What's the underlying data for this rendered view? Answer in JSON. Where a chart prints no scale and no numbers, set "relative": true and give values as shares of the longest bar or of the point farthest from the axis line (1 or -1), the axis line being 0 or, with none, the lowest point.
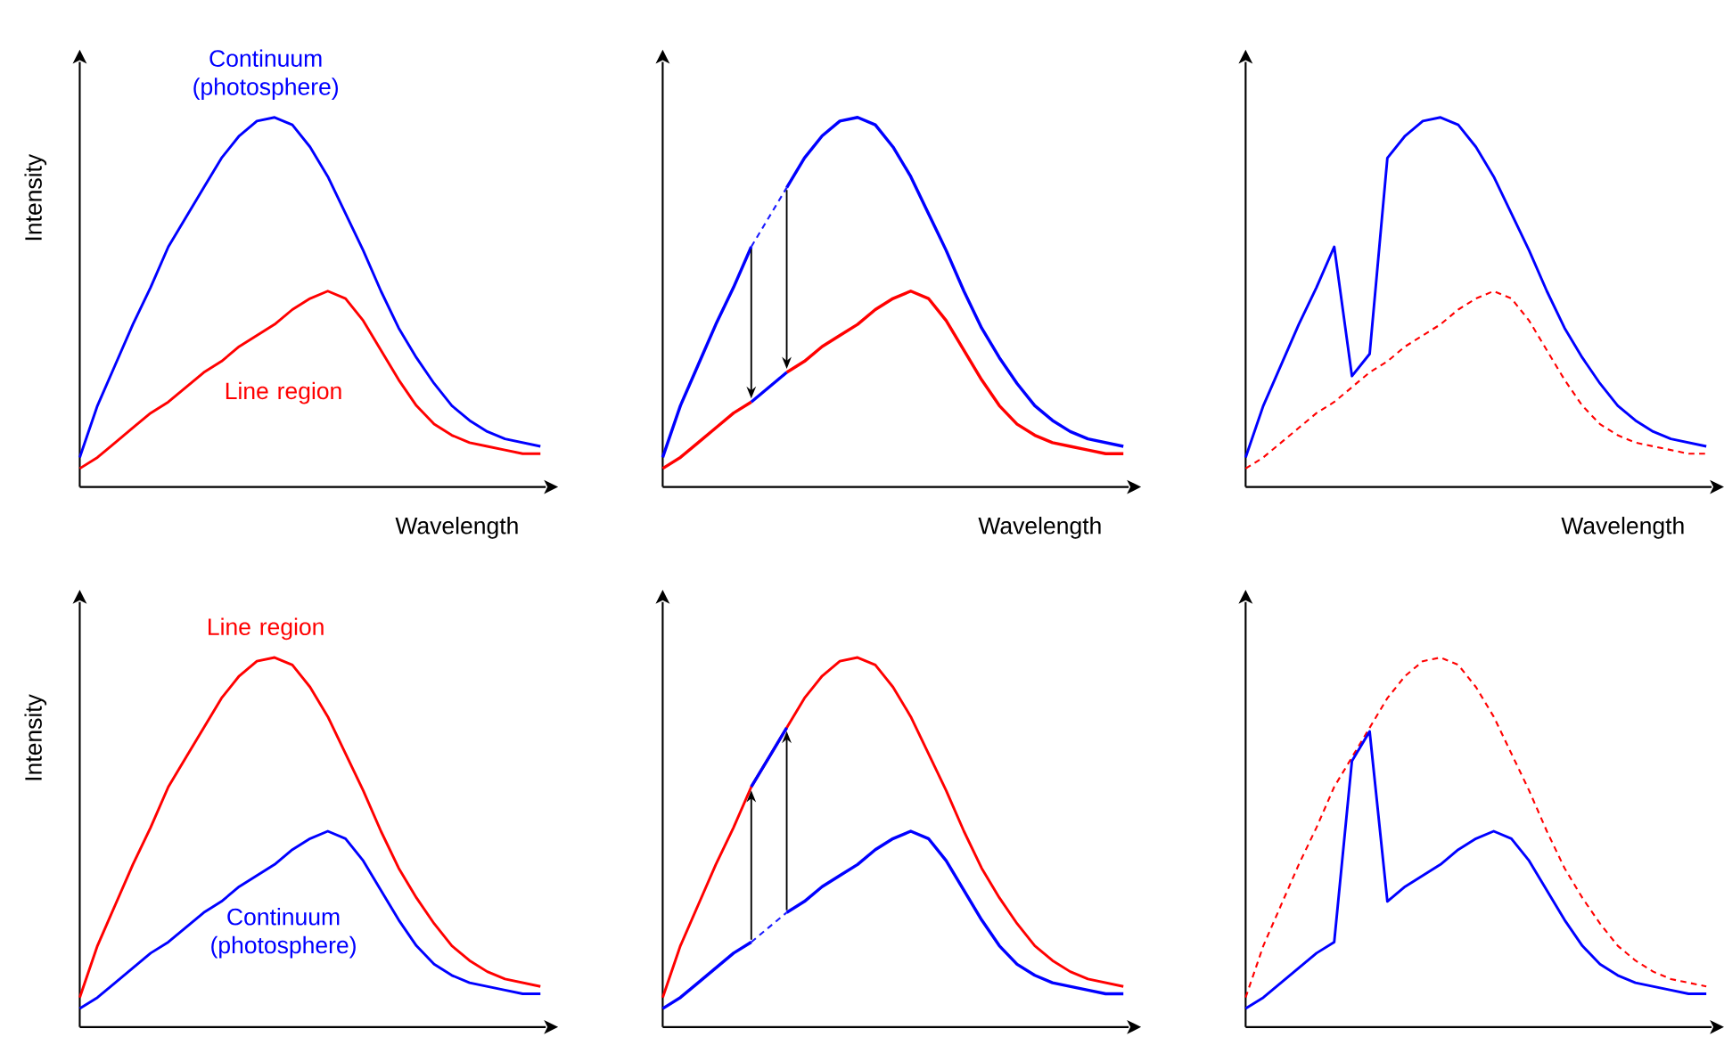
{
  "chart_data": [
    {
      "type": "line",
      "relative": true,
      "ylabel": "Intensity",
      "xlabel": "Wavelength",
      "categories": [
        null,
        null,
        null,
        null,
        null,
        null,
        null,
        null,
        null,
        null,
        null,
        null,
        null,
        null,
        null,
        null,
        null,
        null,
        null,
        null,
        null,
        null,
        null,
        null,
        null,
        null,
        null
      ],
      "series": [
        {
          "name": "Continuum (photosphere)",
          "color": "#0000ff",
          "values": [
            0.08,
            0.22,
            0.33,
            0.44,
            0.54,
            0.65,
            0.73,
            0.81,
            0.89,
            0.95,
            0.99,
            1,
            0.98,
            0.92,
            0.84,
            0.74,
            0.64,
            0.53,
            0.43,
            0.35,
            0.28,
            0.22,
            0.18,
            0.15,
            0.13,
            0.12,
            0.11
          ]
        },
        {
          "name": "Line region",
          "color": "#ff0000",
          "values": [
            0.05,
            0.08,
            0.12,
            0.16,
            0.2,
            0.23,
            0.27,
            0.31,
            0.34,
            0.38,
            0.41,
            0.44,
            0.48,
            0.51,
            0.53,
            0.51,
            0.45,
            0.37,
            0.29,
            0.22,
            0.17,
            0.14,
            0.12,
            0.11,
            0.1,
            0.09,
            0.09
          ]
        }
      ]
    },
    {
      "type": "line",
      "relative": true,
      "xlabel": "Wavelength",
      "categories": [
        null,
        null,
        null,
        null,
        null,
        null,
        null,
        null,
        null,
        null,
        null,
        null,
        null,
        null,
        null,
        null,
        null,
        null,
        null,
        null,
        null,
        null,
        null,
        null,
        null,
        null,
        null
      ],
      "series": [
        {
          "color": "#0000ff",
          "values": [
            0.08,
            0.22,
            0.33,
            0.44,
            0.54,
            0.65,
            null,
            null,
            null,
            null,
            null,
            null,
            null,
            null,
            null,
            null,
            null,
            null,
            null,
            null,
            null,
            null,
            null,
            null,
            null,
            null,
            null
          ]
        },
        {
          "color": "#0000ff",
          "values": [
            null,
            null,
            null,
            null,
            null,
            null,
            null,
            0.81,
            0.89,
            0.95,
            0.99,
            1,
            0.98,
            0.92,
            0.84,
            0.74,
            0.64,
            0.53,
            0.43,
            0.35,
            0.28,
            0.22,
            0.18,
            0.15,
            0.13,
            0.12,
            0.11
          ]
        },
        {
          "color": "#ff0000",
          "values": [
            0.05,
            0.08,
            0.12,
            0.16,
            0.2,
            0.23,
            null,
            null,
            null,
            null,
            null,
            null,
            null,
            null,
            null,
            null,
            null,
            null,
            null,
            null,
            null,
            null,
            null,
            null,
            null,
            null,
            null
          ]
        },
        {
          "color": "#ff0000",
          "values": [
            null,
            null,
            null,
            null,
            null,
            null,
            null,
            0.31,
            0.34,
            0.38,
            0.41,
            0.44,
            0.48,
            0.51,
            0.53,
            0.51,
            0.45,
            0.37,
            0.29,
            0.22,
            0.17,
            0.14,
            0.12,
            0.11,
            0.1,
            0.09,
            0.09
          ]
        },
        {
          "color": "#0000ff",
          "values": [
            null,
            null,
            null,
            null,
            null,
            0.23,
            0.27,
            0.31,
            null,
            null,
            null,
            null,
            null,
            null,
            null,
            null,
            null,
            null,
            null,
            null,
            null,
            null,
            null,
            null,
            null,
            null,
            null
          ]
        },
        {
          "color": "#1a1aff",
          "line_style": "dashed",
          "values": [
            null,
            null,
            null,
            null,
            null,
            0.65,
            0.73,
            0.81,
            null,
            null,
            null,
            null,
            null,
            null,
            null,
            null,
            null,
            null,
            null,
            null,
            null,
            null,
            null,
            null,
            null,
            null,
            null
          ]
        }
      ]
    },
    {
      "type": "line",
      "relative": true,
      "xlabel": "Wavelength",
      "categories": [
        null,
        null,
        null,
        null,
        null,
        null,
        null,
        null,
        null,
        null,
        null,
        null,
        null,
        null,
        null,
        null,
        null,
        null,
        null,
        null,
        null,
        null,
        null,
        null,
        null,
        null,
        null
      ],
      "series": [
        {
          "color": "#ff0000",
          "line_style": "dashed",
          "values": [
            0.05,
            0.08,
            0.12,
            0.16,
            0.2,
            0.23,
            0.27,
            0.31,
            0.34,
            0.38,
            0.41,
            0.44,
            0.48,
            0.51,
            0.53,
            0.51,
            0.45,
            0.37,
            0.29,
            0.22,
            0.17,
            0.14,
            0.12,
            0.11,
            0.1,
            0.09,
            0.09
          ]
        },
        {
          "color": "#0000ff",
          "values": [
            0.08,
            0.22,
            0.33,
            0.44,
            0.54,
            0.65,
            0.3,
            0.36,
            0.89,
            0.95,
            0.99,
            1,
            0.98,
            0.92,
            0.84,
            0.74,
            0.64,
            0.53,
            0.43,
            0.35,
            0.28,
            0.22,
            0.18,
            0.15,
            0.13,
            0.12,
            0.11
          ]
        }
      ]
    },
    {
      "type": "line",
      "relative": true,
      "ylabel": "Intensity",
      "categories": [
        null,
        null,
        null,
        null,
        null,
        null,
        null,
        null,
        null,
        null,
        null,
        null,
        null,
        null,
        null,
        null,
        null,
        null,
        null,
        null,
        null,
        null,
        null,
        null,
        null,
        null,
        null
      ],
      "series": [
        {
          "name": "Line region",
          "color": "#ff0000",
          "values": [
            0.08,
            0.22,
            0.33,
            0.44,
            0.54,
            0.65,
            0.73,
            0.81,
            0.89,
            0.95,
            0.99,
            1,
            0.98,
            0.92,
            0.84,
            0.74,
            0.64,
            0.53,
            0.43,
            0.35,
            0.28,
            0.22,
            0.18,
            0.15,
            0.13,
            0.12,
            0.11
          ]
        },
        {
          "name": "Continuum (photosphere)",
          "color": "#0000ff",
          "values": [
            0.05,
            0.08,
            0.12,
            0.16,
            0.2,
            0.23,
            0.27,
            0.31,
            0.34,
            0.38,
            0.41,
            0.44,
            0.48,
            0.51,
            0.53,
            0.51,
            0.45,
            0.37,
            0.29,
            0.22,
            0.17,
            0.14,
            0.12,
            0.11,
            0.1,
            0.09,
            0.09
          ]
        }
      ]
    },
    {
      "type": "line",
      "relative": true,
      "categories": [
        null,
        null,
        null,
        null,
        null,
        null,
        null,
        null,
        null,
        null,
        null,
        null,
        null,
        null,
        null,
        null,
        null,
        null,
        null,
        null,
        null,
        null,
        null,
        null,
        null,
        null,
        null
      ],
      "series": [
        {
          "color": "#0000ff",
          "values": [
            0.05,
            0.08,
            0.12,
            0.16,
            0.2,
            0.23,
            null,
            null,
            null,
            null,
            null,
            null,
            null,
            null,
            null,
            null,
            null,
            null,
            null,
            null,
            null,
            null,
            null,
            null,
            null,
            null,
            null
          ]
        },
        {
          "color": "#0000ff",
          "values": [
            null,
            null,
            null,
            null,
            null,
            null,
            null,
            0.31,
            0.34,
            0.38,
            0.41,
            0.44,
            0.48,
            0.51,
            0.53,
            0.51,
            0.45,
            0.37,
            0.29,
            0.22,
            0.17,
            0.14,
            0.12,
            0.11,
            0.1,
            0.09,
            0.09
          ]
        },
        {
          "color": "#ff0000",
          "values": [
            0.08,
            0.22,
            0.33,
            0.44,
            0.54,
            0.65,
            0.73,
            0.81,
            0.89,
            0.95,
            0.99,
            1,
            0.98,
            0.92,
            0.84,
            0.74,
            0.64,
            0.53,
            0.43,
            0.35,
            0.28,
            0.22,
            0.18,
            0.15,
            0.13,
            0.12,
            0.11
          ]
        },
        {
          "color": "#0000ff",
          "values": [
            null,
            null,
            null,
            null,
            null,
            0.65,
            0.73,
            0.81,
            null,
            null,
            null,
            null,
            null,
            null,
            null,
            null,
            null,
            null,
            null,
            null,
            null,
            null,
            null,
            null,
            null,
            null,
            null
          ]
        },
        {
          "color": "#1a1aff",
          "line_style": "dashed",
          "values": [
            null,
            null,
            null,
            null,
            null,
            0.23,
            0.27,
            0.31,
            null,
            null,
            null,
            null,
            null,
            null,
            null,
            null,
            null,
            null,
            null,
            null,
            null,
            null,
            null,
            null,
            null,
            null,
            null
          ]
        }
      ]
    },
    {
      "type": "line",
      "relative": true,
      "categories": [
        null,
        null,
        null,
        null,
        null,
        null,
        null,
        null,
        null,
        null,
        null,
        null,
        null,
        null,
        null,
        null,
        null,
        null,
        null,
        null,
        null,
        null,
        null,
        null,
        null,
        null,
        null
      ],
      "series": [
        {
          "color": "#ff0000",
          "line_style": "dashed",
          "values": [
            0.08,
            0.22,
            0.33,
            0.44,
            0.54,
            0.65,
            0.73,
            0.81,
            0.89,
            0.95,
            0.99,
            1,
            0.98,
            0.92,
            0.84,
            0.74,
            0.64,
            0.53,
            0.43,
            0.35,
            0.28,
            0.22,
            0.18,
            0.15,
            0.13,
            0.12,
            0.11
          ]
        },
        {
          "color": "#0000ff",
          "values": [
            0.05,
            0.08,
            0.12,
            0.16,
            0.2,
            0.23,
            0.72,
            0.8,
            0.34,
            0.38,
            0.41,
            0.44,
            0.48,
            0.51,
            0.53,
            0.51,
            0.45,
            0.37,
            0.29,
            0.22,
            0.17,
            0.14,
            0.12,
            0.11,
            0.1,
            0.09,
            0.09
          ]
        }
      ]
    }
  ]
}
